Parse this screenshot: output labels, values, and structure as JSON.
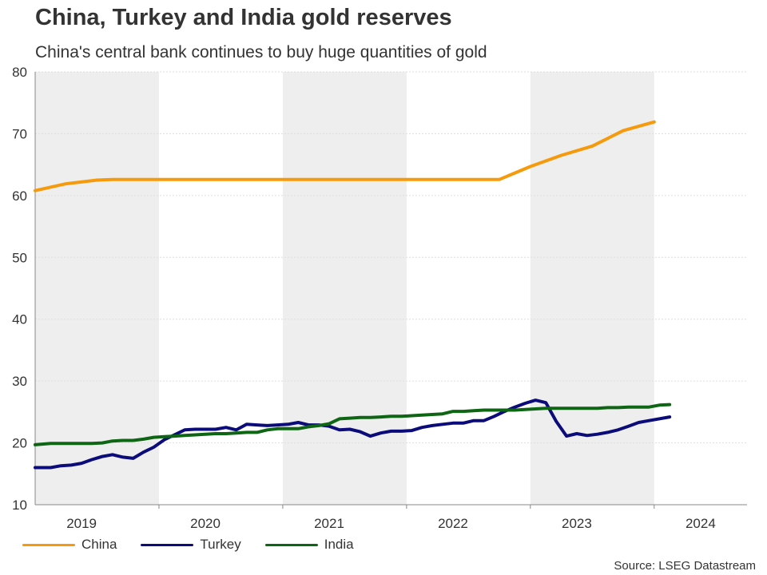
{
  "header": {
    "title": "China, Turkey and India gold reserves",
    "subtitle": "China's central bank continues to buy huge quantities of gold"
  },
  "source": "Source: LSEG Datastream",
  "colors": {
    "china": "#F59A0D",
    "turkey": "#0B0C7A",
    "india": "#0E6614",
    "shade": "#EEEEEE",
    "grid": "#DDDDDD",
    "axis": "#888888"
  },
  "legend": [
    {
      "name": "China",
      "color": "#F59A0D"
    },
    {
      "name": "Turkey",
      "color": "#0B0C7A"
    },
    {
      "name": "India",
      "color": "#0E6614"
    }
  ],
  "chart_data": {
    "type": "line",
    "title": "China, Turkey and India gold reserves",
    "subtitle": "China's central bank continues to buy huge quantities of gold",
    "xlabel": "",
    "ylabel": "",
    "ylim": [
      10,
      80
    ],
    "yticks": [
      10,
      20,
      30,
      40,
      50,
      60,
      70,
      80
    ],
    "xlim": [
      2018.625,
      2024.375
    ],
    "year_labels": [
      {
        "label": "2019",
        "x": 2019.0
      },
      {
        "label": "2020",
        "x": 2020.0
      },
      {
        "label": "2021",
        "x": 2021.0
      },
      {
        "label": "2022",
        "x": 2022.0
      },
      {
        "label": "2023",
        "x": 2023.0
      },
      {
        "label": "2024",
        "x": 2024.0
      }
    ],
    "shaded_periods": [
      [
        2018.625,
        2019.625
      ],
      [
        2020.625,
        2021.625
      ],
      [
        2022.625,
        2023.625
      ]
    ],
    "grid": true,
    "legend_position": "bottom-left",
    "series": [
      {
        "name": "China",
        "points": [
          [
            2018.625,
            60.8
          ],
          [
            2018.875,
            61.9
          ],
          [
            2019.125,
            62.5
          ],
          [
            2019.25,
            62.6
          ],
          [
            2020.0,
            62.6
          ],
          [
            2021.0,
            62.6
          ],
          [
            2022.0,
            62.6
          ],
          [
            2022.375,
            62.6
          ],
          [
            2022.625,
            64.7
          ],
          [
            2022.875,
            66.5
          ],
          [
            2023.125,
            68.0
          ],
          [
            2023.375,
            70.5
          ],
          [
            2023.625,
            71.9
          ]
        ]
      },
      {
        "name": "Turkey",
        "points": [
          [
            2018.625,
            16.0
          ],
          [
            2018.75,
            16.0
          ],
          [
            2018.833,
            16.3
          ],
          [
            2018.917,
            16.4
          ],
          [
            2019.0,
            16.7
          ],
          [
            2019.083,
            17.3
          ],
          [
            2019.167,
            17.8
          ],
          [
            2019.25,
            18.1
          ],
          [
            2019.333,
            17.7
          ],
          [
            2019.417,
            17.5
          ],
          [
            2019.5,
            18.5
          ],
          [
            2019.583,
            19.3
          ],
          [
            2019.667,
            20.5
          ],
          [
            2019.75,
            21.3
          ],
          [
            2019.833,
            22.1
          ],
          [
            2019.917,
            22.2
          ],
          [
            2020.0,
            22.2
          ],
          [
            2020.083,
            22.2
          ],
          [
            2020.167,
            22.5
          ],
          [
            2020.25,
            22.1
          ],
          [
            2020.333,
            23.0
          ],
          [
            2020.417,
            22.9
          ],
          [
            2020.5,
            22.8
          ],
          [
            2020.583,
            22.9
          ],
          [
            2020.667,
            23.0
          ],
          [
            2020.75,
            23.3
          ],
          [
            2020.833,
            22.9
          ],
          [
            2020.917,
            22.9
          ],
          [
            2021.0,
            22.7
          ],
          [
            2021.083,
            22.1
          ],
          [
            2021.167,
            22.2
          ],
          [
            2021.25,
            21.8
          ],
          [
            2021.333,
            21.1
          ],
          [
            2021.417,
            21.6
          ],
          [
            2021.5,
            21.9
          ],
          [
            2021.583,
            21.9
          ],
          [
            2021.667,
            22.0
          ],
          [
            2021.75,
            22.5
          ],
          [
            2021.833,
            22.8
          ],
          [
            2021.917,
            23.0
          ],
          [
            2022.0,
            23.2
          ],
          [
            2022.083,
            23.2
          ],
          [
            2022.167,
            23.6
          ],
          [
            2022.25,
            23.6
          ],
          [
            2022.333,
            24.3
          ],
          [
            2022.417,
            25.1
          ],
          [
            2022.5,
            25.8
          ],
          [
            2022.583,
            26.4
          ],
          [
            2022.667,
            26.9
          ],
          [
            2022.75,
            26.5
          ],
          [
            2022.833,
            23.5
          ],
          [
            2022.917,
            21.1
          ],
          [
            2023.0,
            21.5
          ],
          [
            2023.083,
            21.2
          ],
          [
            2023.167,
            21.4
          ],
          [
            2023.25,
            21.7
          ],
          [
            2023.333,
            22.1
          ],
          [
            2023.417,
            22.7
          ],
          [
            2023.5,
            23.3
          ],
          [
            2023.583,
            23.6
          ],
          [
            2023.75,
            24.2
          ]
        ]
      },
      {
        "name": "India",
        "points": [
          [
            2018.625,
            19.7
          ],
          [
            2018.75,
            19.9
          ],
          [
            2018.917,
            19.9
          ],
          [
            2019.083,
            19.9
          ],
          [
            2019.167,
            20.0
          ],
          [
            2019.25,
            20.3
          ],
          [
            2019.333,
            20.4
          ],
          [
            2019.417,
            20.4
          ],
          [
            2019.5,
            20.6
          ],
          [
            2019.583,
            20.9
          ],
          [
            2019.667,
            21.0
          ],
          [
            2019.75,
            21.1
          ],
          [
            2019.833,
            21.2
          ],
          [
            2019.917,
            21.3
          ],
          [
            2020.0,
            21.4
          ],
          [
            2020.083,
            21.5
          ],
          [
            2020.167,
            21.5
          ],
          [
            2020.25,
            21.6
          ],
          [
            2020.333,
            21.7
          ],
          [
            2020.417,
            21.7
          ],
          [
            2020.5,
            22.1
          ],
          [
            2020.583,
            22.3
          ],
          [
            2020.667,
            22.3
          ],
          [
            2020.75,
            22.3
          ],
          [
            2020.833,
            22.6
          ],
          [
            2020.917,
            22.8
          ],
          [
            2021.0,
            23.1
          ],
          [
            2021.083,
            23.9
          ],
          [
            2021.167,
            24.0
          ],
          [
            2021.25,
            24.1
          ],
          [
            2021.333,
            24.1
          ],
          [
            2021.417,
            24.2
          ],
          [
            2021.5,
            24.3
          ],
          [
            2021.583,
            24.3
          ],
          [
            2021.667,
            24.4
          ],
          [
            2021.75,
            24.5
          ],
          [
            2021.833,
            24.6
          ],
          [
            2021.917,
            24.7
          ],
          [
            2022.0,
            25.1
          ],
          [
            2022.083,
            25.1
          ],
          [
            2022.167,
            25.2
          ],
          [
            2022.25,
            25.3
          ],
          [
            2022.333,
            25.3
          ],
          [
            2022.417,
            25.3
          ],
          [
            2022.5,
            25.3
          ],
          [
            2022.583,
            25.4
          ],
          [
            2022.667,
            25.5
          ],
          [
            2022.75,
            25.6
          ],
          [
            2022.833,
            25.6
          ],
          [
            2022.917,
            25.6
          ],
          [
            2023.0,
            25.6
          ],
          [
            2023.083,
            25.6
          ],
          [
            2023.167,
            25.6
          ],
          [
            2023.25,
            25.7
          ],
          [
            2023.333,
            25.7
          ],
          [
            2023.417,
            25.8
          ],
          [
            2023.5,
            25.8
          ],
          [
            2023.583,
            25.8
          ],
          [
            2023.667,
            26.1
          ],
          [
            2023.75,
            26.2
          ]
        ]
      }
    ]
  }
}
